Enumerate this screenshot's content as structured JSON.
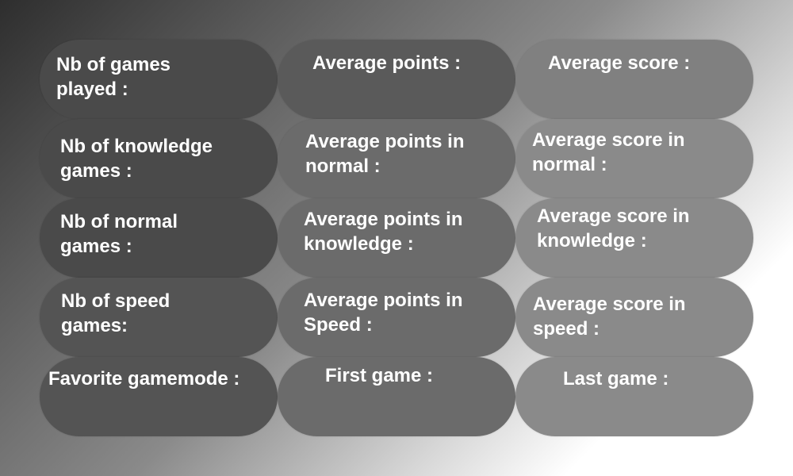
{
  "stats": {
    "games_played": "Nb of games\nplayed :",
    "average_points": "Average points :",
    "average_score": "Average score :",
    "knowledge_games": "Nb of knowledge\ngames :",
    "avg_points_normal": "Average points in\nnormal :",
    "avg_score_normal": "Average score in\nnormal :",
    "normal_games": "Nb of normal\ngames :",
    "avg_points_knowledge": "Average points in\nknowledge :",
    "avg_score_knowledge": "Average score in\nknowledge :",
    "speed_games": "Nb of speed\ngames:",
    "avg_points_speed": "Average points in\nSpeed :",
    "avg_score_speed": "Average score in\nspeed :",
    "favorite_gamemode": "Favorite gamemode :",
    "first_game": "First game :",
    "last_game": "Last game :"
  },
  "colors": {
    "col1": "#4a4a4a",
    "col2": "#5a5a5a",
    "col3": "#808080",
    "text": "#ffffff"
  }
}
